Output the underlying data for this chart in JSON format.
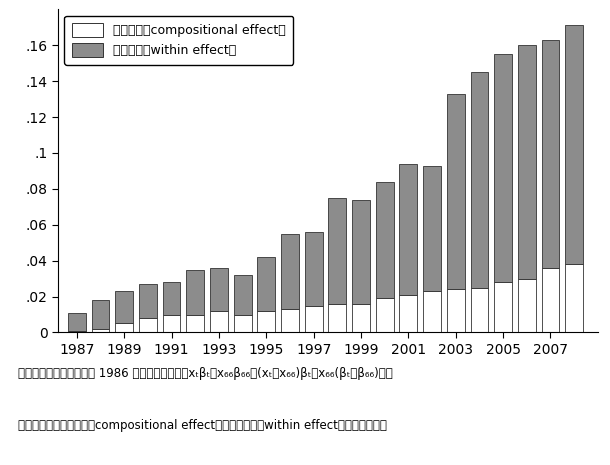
{
  "years": [
    1987,
    1988,
    1989,
    1990,
    1991,
    1992,
    1993,
    1994,
    1995,
    1996,
    1997,
    1998,
    1999,
    2000,
    2001,
    2002,
    2003,
    2004,
    2005,
    2006,
    2007,
    2008
  ],
  "compositional": [
    0.001,
    0.002,
    0.005,
    0.008,
    0.01,
    0.01,
    0.012,
    0.01,
    0.012,
    0.013,
    0.015,
    0.016,
    0.016,
    0.019,
    0.021,
    0.023,
    0.024,
    0.025,
    0.028,
    0.03,
    0.036,
    0.038
  ],
  "within": [
    0.01,
    0.016,
    0.018,
    0.019,
    0.018,
    0.025,
    0.024,
    0.022,
    0.03,
    0.042,
    0.041,
    0.059,
    0.058,
    0.065,
    0.073,
    0.07,
    0.109,
    0.12,
    0.127,
    0.13,
    0.127,
    0.133
  ],
  "bar_width": 0.75,
  "compositional_color": "#ffffff",
  "within_color": "#8c8c8c",
  "edge_color": "#333333",
  "ylim": [
    0,
    0.18
  ],
  "yticks": [
    0,
    0.02,
    0.04,
    0.06,
    0.08,
    0.1,
    0.12,
    0.14,
    0.16
  ],
  "ytick_labels": [
    "0",
    ".02",
    ".04",
    ".06",
    ".08",
    ".1",
    ".12",
    ".14",
    ".16"
  ],
  "xtick_labels": [
    "1987",
    "1989",
    "1991",
    "1993",
    "1995",
    "1997",
    "1999",
    "2001",
    "2003",
    "2005",
    "2007"
  ],
  "xtick_positions": [
    1987,
    1989,
    1991,
    1993,
    1995,
    1997,
    1999,
    2001,
    2003,
    2005,
    2007
  ],
  "legend_compositional": "構成効果（compositional effect）",
  "legend_within": "内部効果（within effect）",
  "note_line1": "注：非正規労働者比率の 1986 年からの変化分をxₜβₜ－x₆₆β₆₆＝(xₜ－x₆₆)βₜ＋x₆₆(βₜ－β₆₆)の式",
  "note_line2": "に基づいて、構成効果（compositional effect）と内部効果（within effect）に分解した。",
  "background_color": "#ffffff"
}
